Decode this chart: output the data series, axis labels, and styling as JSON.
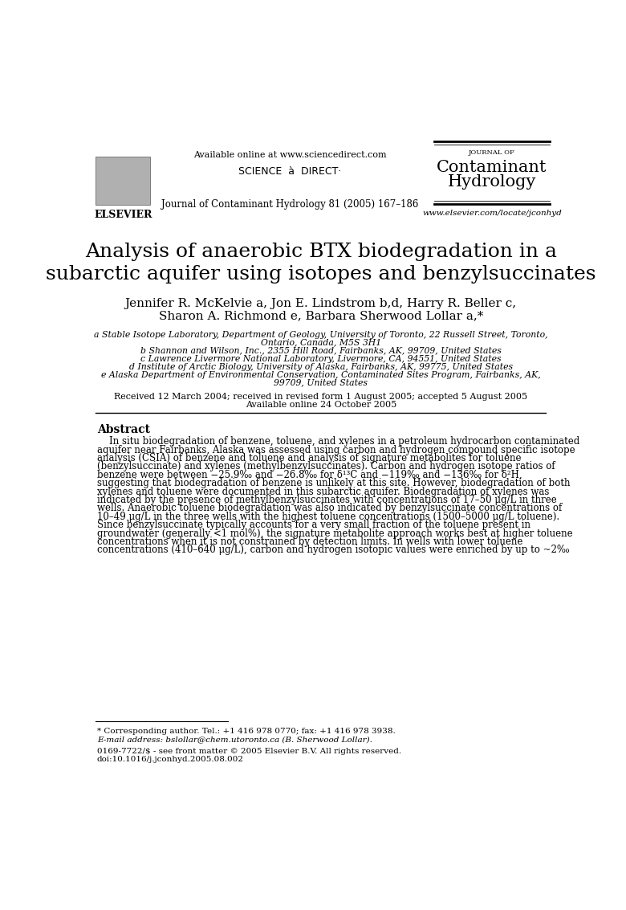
{
  "bg_color": "#ffffff",
  "header_available_text": "Available online at www.sciencedirect.com",
  "header_journal_label": "JOURNAL OF",
  "header_journal_info": "Journal of Contaminant Hydrology 81 (2005) 167–186",
  "header_url": "www.elsevier.com/locate/jconhyd",
  "title_line1": "Analysis of anaerobic BTX biodegradation in a",
  "title_line2": "subarctic aquifer using isotopes and benzylsuccinates",
  "author_line1": "Jennifer R. McKelvie a, Jon E. Lindstrom b,d, Harry R. Beller c,",
  "author_line2": "Sharon A. Richmond e, Barbara Sherwood Lollar a,*",
  "affil_a1": "a Stable Isotope Laboratory, Department of Geology, University of Toronto, 22 Russell Street, Toronto,",
  "affil_a2": "Ontario, Canada, M5S 3H1",
  "affil_b": "b Shannon and Wilson, Inc., 2355 Hill Road, Fairbanks, AK, 99709, United States",
  "affil_c": "c Lawrence Livermore National Laboratory, Livermore, CA, 94551, United States",
  "affil_d": "d Institute of Arctic Biology, University of Alaska, Fairbanks, AK, 99775, United States",
  "affil_e1": "e Alaska Department of Environmental Conservation, Contaminated Sites Program, Fairbanks, AK,",
  "affil_e2": "99709, United States",
  "received_line1": "Received 12 March 2004; received in revised form 1 August 2005; accepted 5 August 2005",
  "received_line2": "Available online 24 October 2005",
  "abstract_title": "Abstract",
  "abstract_lines": [
    "    In situ biodegradation of benzene, toluene, and xylenes in a petroleum hydrocarbon contaminated",
    "aquifer near Fairbanks, Alaska was assessed using carbon and hydrogen compound specific isotope",
    "analysis (CSIA) of benzene and toluene and analysis of signature metabolites for toluene",
    "(benzylsuccinate) and xylenes (methylbenzylsuccinates). Carbon and hydrogen isotope ratios of",
    "benzene were between −25.9‰ and −26.8‰ for δ¹³C and −119‰ and −136‰ for δ²H,",
    "suggesting that biodegradation of benzene is unlikely at this site. However, biodegradation of both",
    "xylenes and toluene were documented in this subarctic aquifer. Biodegradation of xylenes was",
    "indicated by the presence of methylbenzylsuccinates with concentrations of 17–50 μg/L in three",
    "wells. Anaerobic toluene biodegradation was also indicated by benzylsuccinate concentrations of",
    "10–49 μg/L in the three wells with the highest toluene concentrations (1500–5000 μg/L toluene).",
    "Since benzylsuccinate typically accounts for a very small fraction of the toluene present in",
    "groundwater (generally <1 mol%), the signature metabolite approach works best at higher toluene",
    "concentrations when it is not constrained by detection limits. In wells with lower toluene",
    "concentrations (410–640 μg/L), carbon and hydrogen isotopic values were enriched by up to ~2‰"
  ],
  "footnote_star": "* Corresponding author. Tel.: +1 416 978 0770; fax: +1 416 978 3938.",
  "footnote_email": "E-mail address: bslollar@chem.utoronto.ca (B. Sherwood Lollar).",
  "footnote_issn": "0169-7722/$ - see front matter © 2005 Elsevier B.V. All rights reserved.",
  "footnote_doi": "doi:10.1016/j.jconhyd.2005.08.002"
}
